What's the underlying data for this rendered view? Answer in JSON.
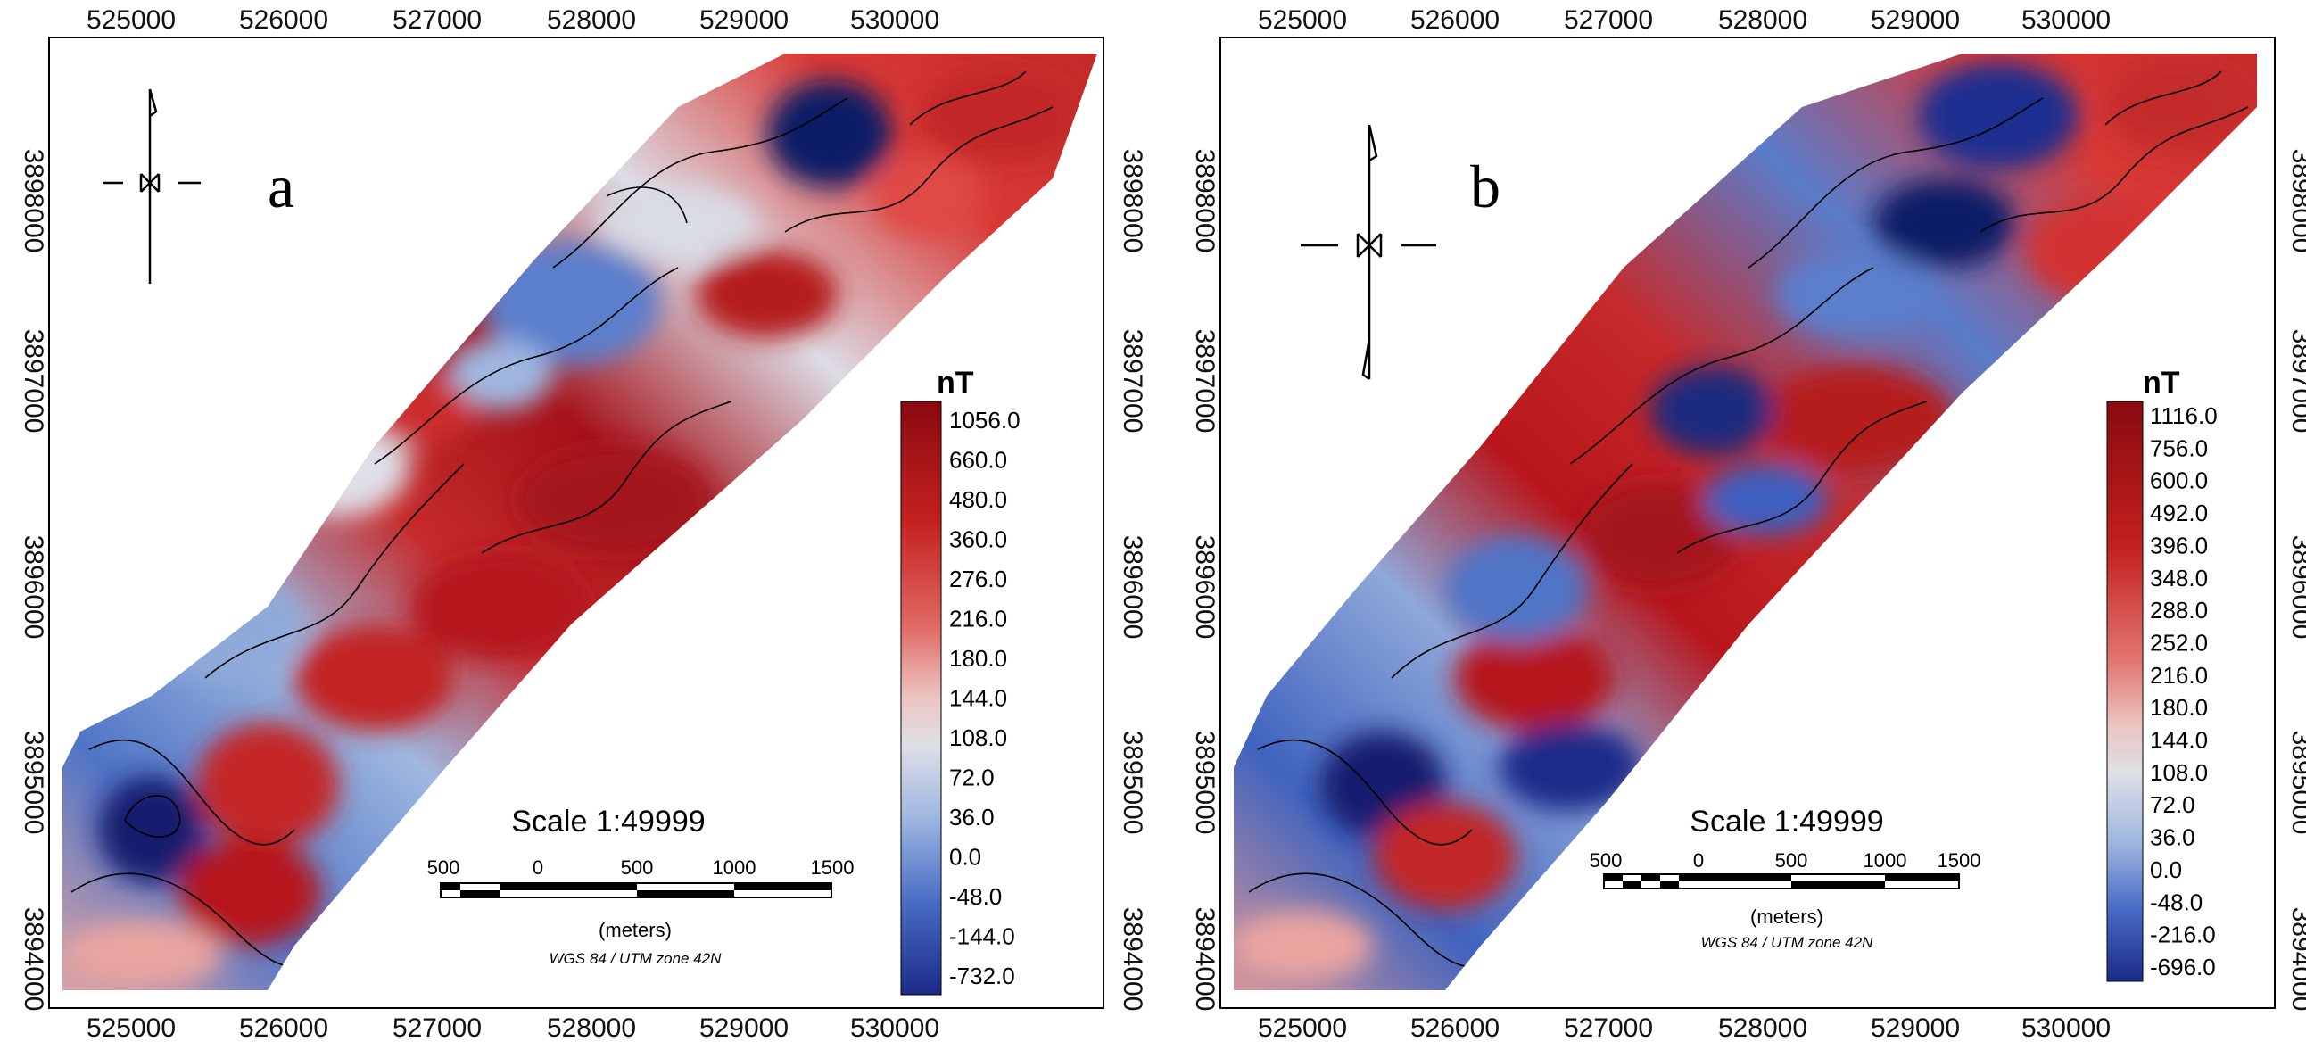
{
  "colors": {
    "blue_deep": "#1a2e8c",
    "blue_mid": "#4f74c6",
    "blue_light": "#9fb8e0",
    "neutral": "#dfe0e8",
    "red_light": "#e89a96",
    "red_mid": "#d83a36",
    "red_deep": "#9c0f14",
    "contour": "#000000"
  },
  "panels": [
    {
      "id": "a",
      "letter": "a",
      "x_ticks_top": [
        "525000",
        "526000",
        "527000",
        "528000",
        "529000",
        "530000"
      ],
      "x_ticks_bottom": [
        "525000",
        "526000",
        "527000",
        "528000",
        "529000",
        "530000"
      ],
      "y_ticks_left": [
        "3898000",
        "3897000",
        "3896000",
        "3895000",
        "3894000"
      ],
      "y_ticks_right": [
        "3898000",
        "3897000",
        "3896000",
        "3895000",
        "3894000"
      ],
      "legend_unit": "nT",
      "legend_values": [
        "1056.0",
        "660.0",
        "480.0",
        "360.0",
        "276.0",
        "216.0",
        "180.0",
        "144.0",
        "108.0",
        "72.0",
        "36.0",
        "0.0",
        "-48.0",
        "-144.0",
        "-732.0"
      ],
      "scale_title": "Scale 1:49999",
      "scale_ticks": [
        "500",
        "0",
        "500",
        "1000",
        "1500"
      ],
      "scale_units": "(meters)",
      "projection": "WGS 84 / UTM zone 42N"
    },
    {
      "id": "b",
      "letter": "b",
      "x_ticks_top": [
        "525000",
        "526000",
        "527000",
        "528000",
        "529000",
        "530000"
      ],
      "x_ticks_bottom": [
        "525000",
        "526000",
        "527000",
        "528000",
        "529000",
        "530000"
      ],
      "y_ticks_left": [
        "3898000",
        "3897000",
        "3896000",
        "3895000",
        "3894000"
      ],
      "y_ticks_right": [
        "3898000",
        "3897000",
        "3896000",
        "3895000",
        "3894000"
      ],
      "legend_unit": "nT",
      "legend_values": [
        "1116.0",
        "756.0",
        "600.0",
        "492.0",
        "396.0",
        "348.0",
        "288.0",
        "252.0",
        "216.0",
        "180.0",
        "144.0",
        "108.0",
        "72.0",
        "36.0",
        "0.0",
        "-48.0",
        "-216.0",
        "-696.0"
      ],
      "scale_title": "Scale 1:49999",
      "scale_ticks": [
        "500",
        "0",
        "500",
        "1000",
        "1500"
      ],
      "scale_units": "(meters)",
      "projection": "WGS 84 / UTM zone 42N"
    }
  ]
}
